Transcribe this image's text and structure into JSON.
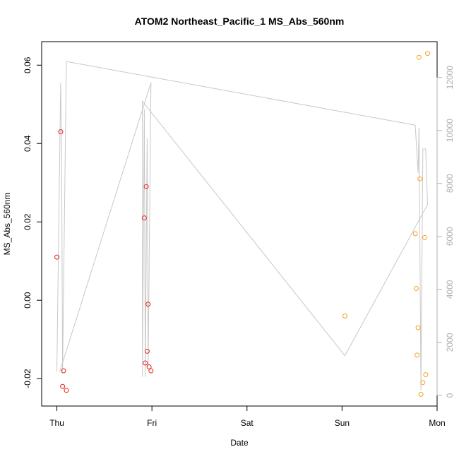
{
  "chart_data": {
    "type": "scatter",
    "title": "ATOM2 Northeast_Pacific_1 MS_Abs_560nm",
    "xlabel": "Date",
    "ylabel": "MS_Abs_560nm",
    "x_ticks": [
      "Thu",
      "Fri",
      "Sat",
      "Sun",
      "Mon"
    ],
    "x_range_days": [
      -0.16,
      4.0
    ],
    "y_ticks": [
      "-0.02",
      "0.00",
      "0.02",
      "0.04",
      "0.06"
    ],
    "ylim": [
      -0.027,
      0.066
    ],
    "y2_ticks": [
      "0",
      "2000",
      "4000",
      "6000",
      "8000",
      "10000",
      "12000"
    ],
    "y2lim": [
      -400,
      13350
    ],
    "grid": false,
    "colors": {
      "series_1": "#e8211f",
      "series_2": "#f5a122",
      "line": "#c8c8c8",
      "right_axis": "#b0b0b0"
    },
    "series": [
      {
        "points": [
          {
            "x": 0.0,
            "y": 0.011
          },
          {
            "x": 0.04,
            "y": 0.043
          },
          {
            "x": 0.06,
            "y": -0.022
          },
          {
            "x": 0.07,
            "y": -0.018
          },
          {
            "x": 0.1,
            "y": -0.023
          },
          {
            "x": 0.92,
            "y": 0.021
          },
          {
            "x": 0.93,
            "y": -0.016
          },
          {
            "x": 0.94,
            "y": 0.029
          },
          {
            "x": 0.95,
            "y": -0.013
          },
          {
            "x": 0.96,
            "y": -0.001
          },
          {
            "x": 0.97,
            "y": -0.017
          },
          {
            "x": 0.99,
            "y": -0.018
          }
        ]
      },
      {
        "points": [
          {
            "x": 3.03,
            "y": -0.004
          },
          {
            "x": 3.77,
            "y": 0.017
          },
          {
            "x": 3.78,
            "y": 0.003
          },
          {
            "x": 3.79,
            "y": -0.014
          },
          {
            "x": 3.8,
            "y": -0.007
          },
          {
            "x": 3.81,
            "y": 0.062
          },
          {
            "x": 3.82,
            "y": 0.031
          },
          {
            "x": 3.83,
            "y": -0.024
          },
          {
            "x": 3.85,
            "y": -0.021
          },
          {
            "x": 3.87,
            "y": 0.016
          },
          {
            "x": 3.88,
            "y": -0.019
          },
          {
            "x": 3.9,
            "y": 0.063
          }
        ]
      }
    ],
    "line_series": {
      "axis": "right",
      "points": [
        {
          "x": 0.0,
          "y": 900
        },
        {
          "x": 0.04,
          "y": 11800
        },
        {
          "x": 0.05,
          "y": 9000
        },
        {
          "x": 0.06,
          "y": 900
        },
        {
          "x": 0.1,
          "y": 12600
        },
        {
          "x": 3.77,
          "y": 10200
        },
        {
          "x": 3.8,
          "y": 8400
        },
        {
          "x": 3.81,
          "y": 10100
        },
        {
          "x": 3.83,
          "y": 200
        },
        {
          "x": 3.85,
          "y": 9300
        },
        {
          "x": 3.88,
          "y": 9300
        },
        {
          "x": 3.9,
          "y": 7200
        },
        {
          "x": 3.03,
          "y": 1500
        },
        {
          "x": 3.03,
          "y": 1500
        },
        {
          "x": 0.9,
          "y": 11100
        },
        {
          "x": 0.9,
          "y": 700
        },
        {
          "x": 0.92,
          "y": 10800
        },
        {
          "x": 0.93,
          "y": 700
        },
        {
          "x": 0.95,
          "y": 9700
        },
        {
          "x": 0.96,
          "y": 1100
        },
        {
          "x": 0.99,
          "y": 11800
        },
        {
          "x": 0.99,
          "y": 11800
        },
        {
          "x": 0.03,
          "y": 900
        }
      ]
    }
  }
}
